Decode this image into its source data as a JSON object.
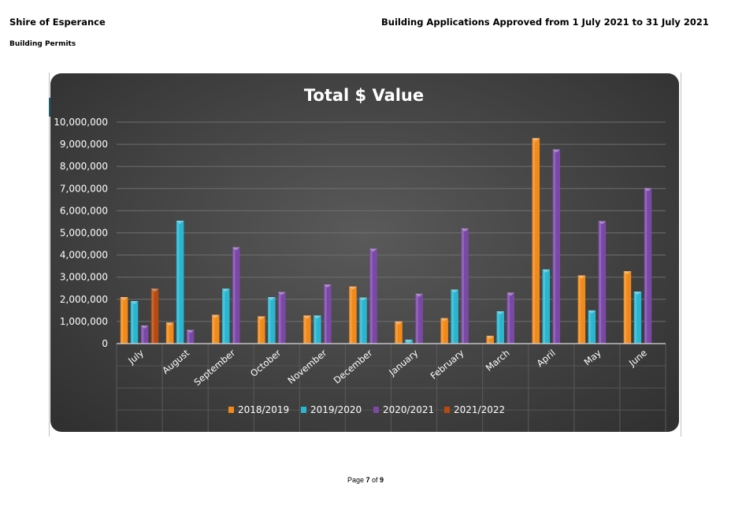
{
  "header": {
    "organisation": "Shire of Esperance",
    "section": "Building Permits",
    "report_title": "Building Applications Approved from 1 July 2021 to 31 July 2021"
  },
  "footer": {
    "prefix": "Page ",
    "current": "7",
    "of": " of ",
    "total": "9"
  },
  "chart_data": {
    "type": "bar",
    "title": "Total $ Value",
    "xlabel": "",
    "ylabel": "",
    "ylim": [
      0,
      10000000
    ],
    "yticks": [
      0,
      1000000,
      2000000,
      3000000,
      4000000,
      5000000,
      6000000,
      7000000,
      8000000,
      9000000,
      10000000
    ],
    "ytick_labels": [
      "0",
      "1,000,000",
      "2,000,000",
      "3,000,000",
      "4,000,000",
      "5,000,000",
      "6,000,000",
      "7,000,000",
      "8,000,000",
      "9,000,000",
      "10,000,000"
    ],
    "grid": true,
    "legend": "bottom",
    "categories": [
      "July",
      "August",
      "September",
      "October",
      "November",
      "December",
      "January",
      "February",
      "March",
      "April",
      "May",
      "June"
    ],
    "series": [
      {
        "name": "2018/2019",
        "color": "#f28a1a",
        "values": [
          2100000,
          950000,
          1300000,
          1230000,
          1270000,
          2580000,
          1000000,
          1150000,
          350000,
          9280000,
          3080000,
          3270000
        ]
      },
      {
        "name": "2019/2020",
        "color": "#29b6d0",
        "values": [
          1920000,
          5550000,
          2480000,
          2100000,
          1270000,
          2080000,
          180000,
          2440000,
          1460000,
          3350000,
          1500000,
          2350000
        ]
      },
      {
        "name": "2020/2021",
        "color": "#7b48a8",
        "values": [
          820000,
          620000,
          4350000,
          2330000,
          2670000,
          4290000,
          2250000,
          5200000,
          2300000,
          8770000,
          5530000,
          7020000
        ]
      },
      {
        "name": "2021/2022",
        "color": "#b84a0e",
        "values": [
          2480000,
          null,
          null,
          null,
          null,
          null,
          null,
          null,
          null,
          null,
          null,
          null
        ]
      }
    ]
  }
}
